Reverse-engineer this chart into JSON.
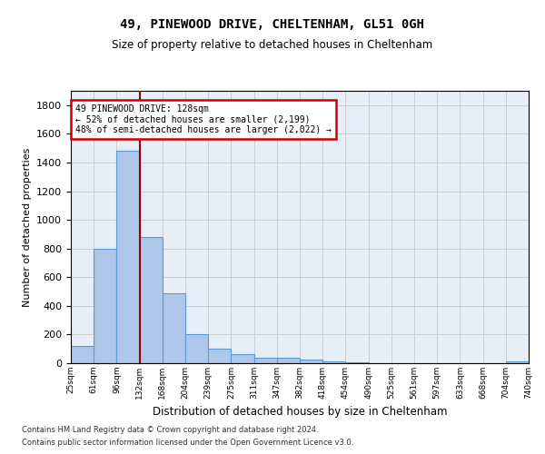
{
  "title1": "49, PINEWOOD DRIVE, CHELTENHAM, GL51 0GH",
  "title2": "Size of property relative to detached houses in Cheltenham",
  "xlabel": "Distribution of detached houses by size in Cheltenham",
  "ylabel": "Number of detached properties",
  "bin_labels": [
    "25sqm",
    "61sqm",
    "96sqm",
    "132sqm",
    "168sqm",
    "204sqm",
    "239sqm",
    "275sqm",
    "311sqm",
    "347sqm",
    "382sqm",
    "418sqm",
    "454sqm",
    "490sqm",
    "525sqm",
    "561sqm",
    "597sqm",
    "633sqm",
    "668sqm",
    "704sqm",
    "740sqm"
  ],
  "bar_values": [
    120,
    800,
    1480,
    880,
    490,
    200,
    100,
    65,
    40,
    35,
    25,
    15,
    5,
    0,
    0,
    0,
    0,
    0,
    0,
    15
  ],
  "bar_color": "#aec6e8",
  "bar_edge_color": "#5b9bd5",
  "property_line_x": 2.5,
  "annotation_title": "49 PINEWOOD DRIVE: 128sqm",
  "annotation_line2": "← 52% of detached houses are smaller (2,199)",
  "annotation_line3": "48% of semi-detached houses are larger (2,022) →",
  "annotation_box_color": "#cc0000",
  "ylim": [
    0,
    1900
  ],
  "yticks": [
    0,
    200,
    400,
    600,
    800,
    1000,
    1200,
    1400,
    1600,
    1800
  ],
  "grid_color": "#cccccc",
  "background_color": "#e8eef8",
  "footer_line1": "Contains HM Land Registry data © Crown copyright and database right 2024.",
  "footer_line2": "Contains public sector information licensed under the Open Government Licence v3.0."
}
